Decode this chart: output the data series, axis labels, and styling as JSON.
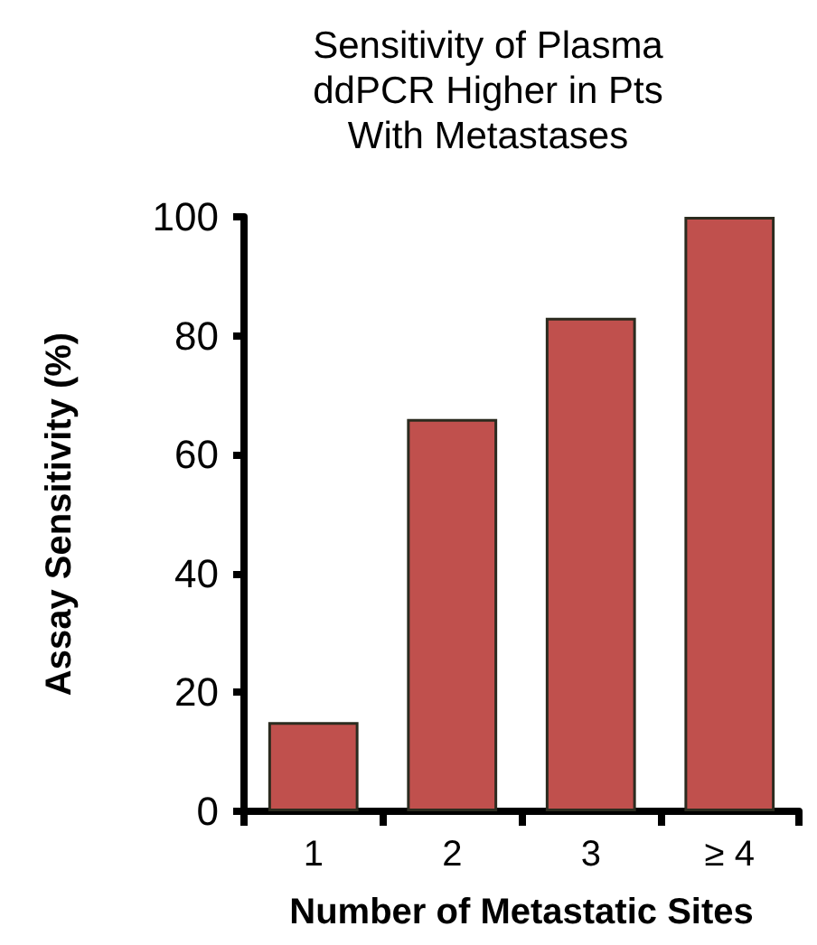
{
  "chart_data": {
    "type": "bar",
    "title": "Sensitivity of Plasma\nddPCR Higher in Pts\nWith Metastases",
    "xlabel": "Number of Metastatic Sites",
    "ylabel": "Assay Sensitivity (%)",
    "categories": [
      "1",
      "2",
      "3",
      "≥ 4"
    ],
    "values": [
      15,
      66,
      83,
      100
    ],
    "color": "#c0504d",
    "ylim": [
      0,
      100
    ],
    "yticks": [
      0,
      20,
      40,
      60,
      80,
      100
    ],
    "grid": false
  }
}
